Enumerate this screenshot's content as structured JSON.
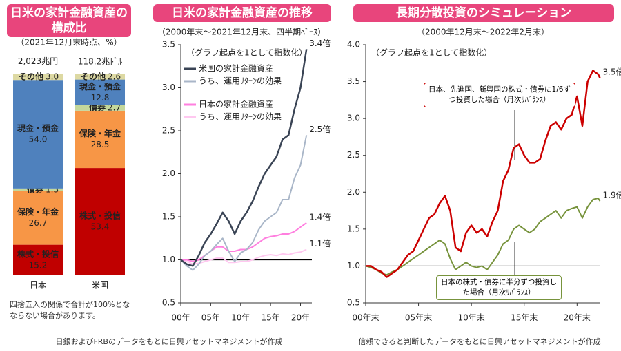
{
  "chart_data": [
    {
      "type": "stacked_bar",
      "title": "日米の家計金融資産の構成比",
      "subtitle": "（2021年12月末時点、%）",
      "categories": [
        "日本",
        "米国"
      ],
      "totals": [
        "2,023兆円",
        "118.2兆ﾄﾞﾙ"
      ],
      "series": [
        {
          "name": "株式・投信",
          "color": "#c00000",
          "values": [
            15.2,
            53.4
          ]
        },
        {
          "name": "保険・年金",
          "color": "#f79646",
          "values": [
            26.7,
            28.5
          ]
        },
        {
          "name": "債券",
          "color": "#c4d79b",
          "values": [
            1.3,
            2.7
          ]
        },
        {
          "name": "現金・預金",
          "color": "#4f81bd",
          "values": [
            54.0,
            12.8
          ],
          "value_labels": [
            "54.0",
            "12.8"
          ]
        },
        {
          "name": "その他",
          "color": "#ddd9a3",
          "values": [
            3.0,
            2.6
          ],
          "value_labels": [
            "3.0",
            "2.6"
          ]
        }
      ],
      "ylim": [
        0,
        100
      ],
      "note": "四捨五入の関係で合計が100%となならない場合があります。"
    },
    {
      "type": "line",
      "title": "日米の家計金融資産の推移",
      "subtitle": "（2000年末～2021年12月末、四半期ﾍﾞｰｽ）",
      "annotation": "（グラフ起点を1として指数化）",
      "x": [
        2000,
        2001,
        2002,
        2003,
        2004,
        2005,
        2006,
        2007,
        2008,
        2009,
        2010,
        2011,
        2012,
        2013,
        2014,
        2015,
        2016,
        2017,
        2018,
        2019,
        2020,
        2021
      ],
      "series": [
        {
          "name": "米国の家計金融資産",
          "color": "#3a4455",
          "end_label": "3.4倍",
          "values": [
            1.0,
            0.95,
            0.93,
            1.05,
            1.2,
            1.3,
            1.42,
            1.55,
            1.45,
            1.3,
            1.45,
            1.55,
            1.68,
            1.85,
            2.0,
            2.1,
            2.2,
            2.4,
            2.45,
            2.75,
            3.0,
            3.45
          ]
        },
        {
          "name": "うち、運用ﾘﾀｰﾝの効果",
          "color": "#a9b6c8",
          "end_label": "2.5倍",
          "values": [
            1.0,
            0.93,
            0.88,
            0.95,
            1.05,
            1.1,
            1.18,
            1.25,
            1.1,
            0.98,
            1.08,
            1.12,
            1.2,
            1.35,
            1.45,
            1.5,
            1.55,
            1.7,
            1.7,
            1.95,
            2.1,
            2.45
          ]
        },
        {
          "name": "日本の家計金融資産",
          "color": "#ff7fdf",
          "end_label": "1.4倍",
          "values": [
            1.0,
            1.0,
            0.98,
            1.0,
            1.05,
            1.1,
            1.15,
            1.15,
            1.1,
            1.1,
            1.12,
            1.12,
            1.15,
            1.2,
            1.25,
            1.27,
            1.28,
            1.3,
            1.3,
            1.33,
            1.38,
            1.43
          ]
        },
        {
          "name": "うち、運用ﾘﾀｰﾝの効果",
          "color": "#ffc8f0",
          "end_label": "1.1倍",
          "values": [
            1.0,
            0.98,
            0.95,
            0.96,
            0.98,
            1.0,
            1.02,
            1.02,
            0.97,
            0.97,
            0.98,
            0.98,
            1.0,
            1.03,
            1.05,
            1.06,
            1.05,
            1.07,
            1.06,
            1.08,
            1.09,
            1.12
          ]
        }
      ],
      "xlim": [
        2000,
        2021.9
      ],
      "xticks": [
        {
          "value": 2000,
          "label": "00年"
        },
        {
          "value": 2005,
          "label": "05年"
        },
        {
          "value": 2010,
          "label": "10年"
        },
        {
          "value": 2015,
          "label": "15年"
        },
        {
          "value": 2020,
          "label": "20年"
        }
      ],
      "ylim": [
        0.5,
        3.5
      ],
      "yticks": [
        0.5,
        {
          "value": 1,
          "label": "1.0"
        },
        1.5,
        {
          "value": 2,
          "label": "2.0"
        },
        2.5,
        {
          "value": 3,
          "label": "3.0"
        },
        3.5
      ],
      "hline": 1,
      "legend": "upper left",
      "source": "日銀およびFRBのデータをもとに日興アセットマネジメントが作成"
    },
    {
      "type": "line",
      "title": "長期分散投資のシミュレーション",
      "subtitle": "（2000年12月末～2022年2月末）",
      "annotation": "（グラフ起点を1として指数化）",
      "x": [
        2000,
        2000.5,
        2001,
        2001.5,
        2002,
        2002.5,
        2003,
        2003.5,
        2004,
        2004.5,
        2005,
        2005.5,
        2006,
        2006.5,
        2007,
        2007.5,
        2008,
        2008.5,
        2009,
        2009.5,
        2010,
        2010.5,
        2011,
        2011.5,
        2012,
        2012.5,
        2013,
        2013.5,
        2014,
        2014.5,
        2015,
        2015.5,
        2016,
        2016.5,
        2017,
        2017.5,
        2018,
        2018.5,
        2019,
        2019.5,
        2020,
        2020.5,
        2021,
        2021.5,
        2022,
        2022.17
      ],
      "series": [
        {
          "name": "日本、先進国、新興国の株式・債券に1/6ずつ投資した場合（月次ﾘﾊﾞﾗﾝｽ）",
          "color": "#cc0000",
          "end_label": "3.5倍",
          "values": [
            1.0,
            1.0,
            0.95,
            0.92,
            0.85,
            0.9,
            0.95,
            1.05,
            1.15,
            1.2,
            1.35,
            1.5,
            1.65,
            1.7,
            1.85,
            1.95,
            1.75,
            1.25,
            1.2,
            1.45,
            1.55,
            1.45,
            1.5,
            1.4,
            1.6,
            1.75,
            2.15,
            2.3,
            2.6,
            2.65,
            2.5,
            2.4,
            2.4,
            2.45,
            2.7,
            2.9,
            2.95,
            2.85,
            3.0,
            3.05,
            3.3,
            2.9,
            3.5,
            3.65,
            3.6,
            3.55
          ]
        },
        {
          "name": "日本の株式・債券に半分ずつ投資した場合（月次ﾘﾊﾞﾗﾝｽ）",
          "color": "#77933c",
          "end_label": "1.9倍",
          "values": [
            1.0,
            0.98,
            0.95,
            0.9,
            0.88,
            0.92,
            0.95,
            1.0,
            1.05,
            1.1,
            1.15,
            1.2,
            1.25,
            1.3,
            1.35,
            1.3,
            1.1,
            0.95,
            1.0,
            1.05,
            1.0,
            0.98,
            1.0,
            0.95,
            1.05,
            1.15,
            1.3,
            1.35,
            1.5,
            1.55,
            1.5,
            1.45,
            1.5,
            1.6,
            1.65,
            1.7,
            1.75,
            1.65,
            1.75,
            1.78,
            1.8,
            1.65,
            1.8,
            1.9,
            1.92,
            1.88
          ]
        }
      ],
      "xlim": [
        2000,
        2022.2
      ],
      "xticks": [
        {
          "value": 2000,
          "label": "00年末"
        },
        {
          "value": 2005,
          "label": "05年末"
        },
        {
          "value": 2010,
          "label": "10年末"
        },
        {
          "value": 2015,
          "label": "15年末"
        },
        {
          "value": 2020,
          "label": "20年末"
        }
      ],
      "ylim": [
        0.5,
        4
      ],
      "yticks": [
        0.5,
        {
          "value": 1,
          "label": "1.0"
        },
        1.5,
        {
          "value": 2,
          "label": "2.0"
        },
        2.5,
        {
          "value": 3,
          "label": "3.0"
        },
        3.5,
        {
          "value": 4,
          "label": "4.0"
        }
      ],
      "hline": 1,
      "source": "信頼できると判断したデータをもとに日興アセットマネジメントが作成"
    }
  ]
}
